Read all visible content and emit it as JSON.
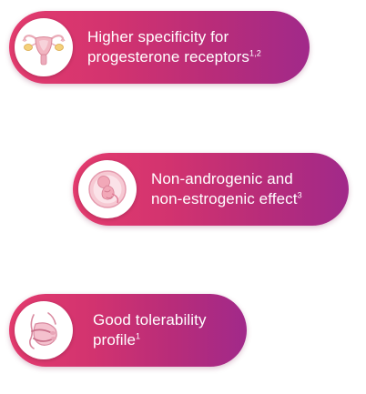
{
  "features": [
    {
      "icon": "uterus-icon",
      "line1": "Higher specificity for",
      "line2": "progesterone receptors",
      "sup": "1,2"
    },
    {
      "icon": "fetus-icon",
      "line1": "Non-androgenic and",
      "line2": "non-estrogenic effect",
      "sup": "3"
    },
    {
      "icon": "embrace-icon",
      "line1": "Good tolerability",
      "line2": "profile",
      "sup": "1"
    }
  ],
  "colors": {
    "pill_start": "#e33b6e",
    "pill_end": "#a1298a",
    "icon_bg": "#ffffff",
    "text": "#ffffff"
  }
}
